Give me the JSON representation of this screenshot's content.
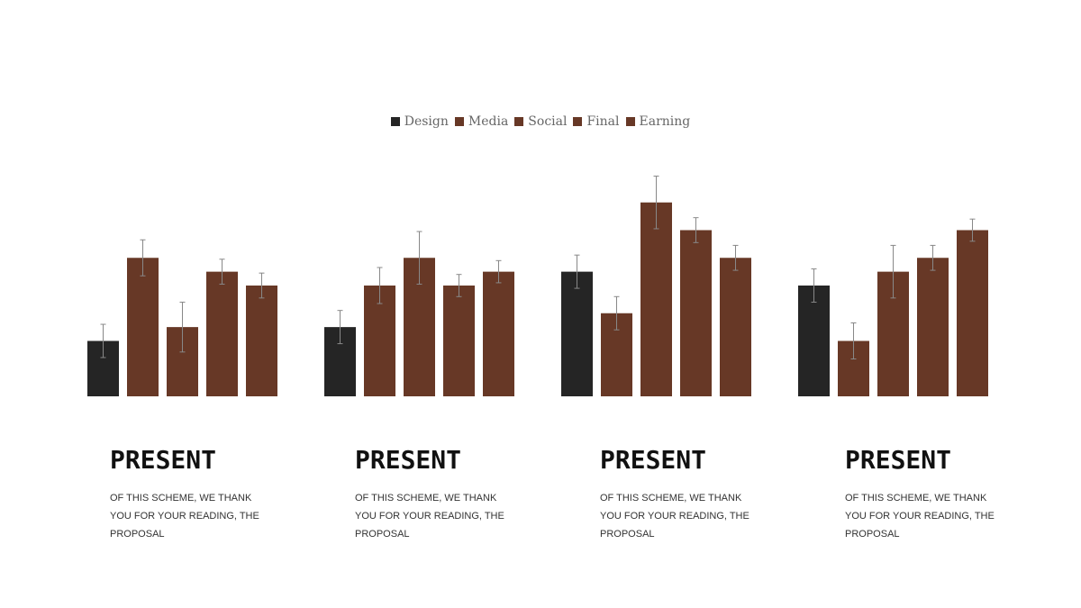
{
  "chart_data": {
    "type": "bar",
    "categories": [
      null,
      null,
      null,
      null
    ],
    "ylim": [
      0,
      8
    ],
    "legend": "top",
    "series": [
      {
        "name": "Design",
        "color": "#252525",
        "values": [
          2,
          2.5,
          4.5,
          4
        ],
        "errors": [
          0.6,
          0.6,
          0.6,
          0.6
        ]
      },
      {
        "name": "Media",
        "color": "#673826",
        "values": [
          5,
          4,
          3,
          2
        ],
        "errors": [
          0.65,
          0.65,
          0.6,
          0.65
        ]
      },
      {
        "name": "Social",
        "color": "#673826",
        "values": [
          2.5,
          5,
          7,
          4.5
        ],
        "errors": [
          0.9,
          0.95,
          0.95,
          0.95
        ]
      },
      {
        "name": "Final",
        "color": "#673826",
        "values": [
          4.5,
          4,
          6,
          5
        ],
        "errors": [
          0.45,
          0.4,
          0.45,
          0.45
        ]
      },
      {
        "name": "Earning",
        "color": "#673826",
        "values": [
          4,
          4.5,
          5,
          6
        ],
        "errors": [
          0.45,
          0.4,
          0.45,
          0.4
        ]
      }
    ]
  },
  "cards": [
    {
      "title": "PRESENT",
      "text": "OF THIS SCHEME, WE THANK YOU FOR YOUR READING, THE PROPOSAL"
    },
    {
      "title": "PRESENT",
      "text": "OF THIS SCHEME, WE THANK YOU FOR YOUR READING, THE PROPOSAL"
    },
    {
      "title": "PRESENT",
      "text": "OF THIS SCHEME, WE THANK YOU FOR YOUR READING, THE PROPOSAL"
    },
    {
      "title": "PRESENT",
      "text": "OF THIS SCHEME, WE THANK YOU FOR YOUR READING, THE PROPOSAL"
    }
  ]
}
